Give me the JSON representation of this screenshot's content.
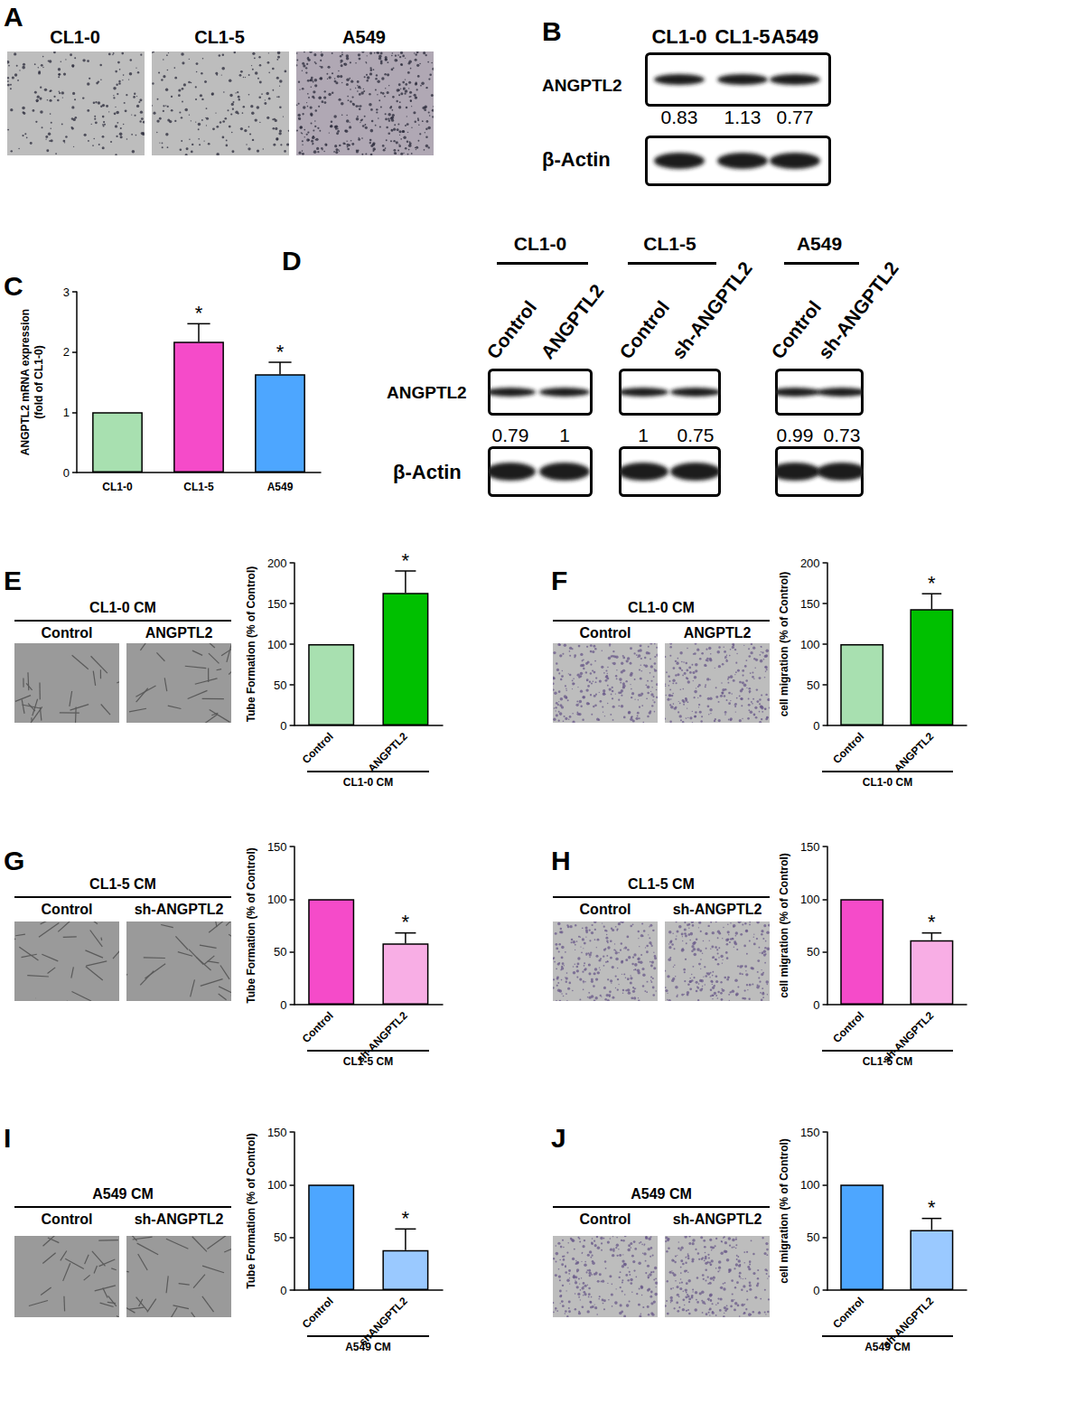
{
  "panels": {
    "A": {
      "letter": "A",
      "images": [
        "CL1-0",
        "CL1-5",
        "A549"
      ]
    },
    "B": {
      "letter": "B",
      "lanes": [
        "CL1-0",
        "CL1-5",
        "A549"
      ],
      "blots": [
        {
          "label": "ANGPTL2",
          "values": [
            0.83,
            1.13,
            0.77
          ]
        },
        {
          "label": "β-Actin"
        }
      ]
    },
    "C": {
      "letter": "C"
    },
    "D": {
      "letter": "D",
      "blots": [
        "ANGPTL2",
        "β-Actin"
      ],
      "groups": [
        {
          "name": "CL1-0",
          "lanes": [
            "Control",
            "ANGPTL2"
          ],
          "values": [
            0.79,
            1
          ]
        },
        {
          "name": "CL1-5",
          "lanes": [
            "Control",
            "sh-ANGPTL2"
          ],
          "values": [
            1,
            0.75
          ]
        },
        {
          "name": "A549",
          "lanes": [
            "Control",
            "sh-ANGPTL2"
          ],
          "values": [
            0.99,
            0.73
          ]
        }
      ]
    },
    "E": {
      "letter": "E",
      "image_title": "CL1-0 CM",
      "image_lanes": [
        "Control",
        "ANGPTL2"
      ]
    },
    "F": {
      "letter": "F",
      "image_title": "CL1-0 CM",
      "image_lanes": [
        "Control",
        "ANGPTL2"
      ]
    },
    "G": {
      "letter": "G",
      "image_title": "CL1-5 CM",
      "image_lanes": [
        "Control",
        "sh-ANGPTL2"
      ]
    },
    "H": {
      "letter": "H",
      "image_title": "CL1-5 CM",
      "image_lanes": [
        "Control",
        "sh-ANGPTL2"
      ]
    },
    "I": {
      "letter": "I",
      "image_title": "A549 CM",
      "image_lanes": [
        "Control",
        "sh-ANGPTL2"
      ]
    },
    "J": {
      "letter": "J",
      "image_title": "A549 CM",
      "image_lanes": [
        "Control",
        "sh-ANGPTL2"
      ]
    }
  },
  "chart_data": [
    {
      "type": "bar",
      "ylabel": "ANGPTL2 mRNA expression\n(fold of CL1-0)",
      "categories": [
        "CL1-0",
        "CL1-5",
        "A549"
      ],
      "values": [
        1,
        2.17,
        1.63
      ],
      "errors": [
        0,
        0.3,
        0.2
      ],
      "significance": [
        null,
        "*",
        "*"
      ],
      "colors": [
        "#a8e0b0",
        "#f54bc9",
        "#4da6ff"
      ],
      "ylim": [
        0,
        3
      ],
      "yticks": [
        0,
        1,
        2,
        3
      ]
    },
    {
      "type": "bar",
      "ylabel": "Tube Formation (% of Control)",
      "xlabel": "CL1-0 CM",
      "categories": [
        "Control",
        "ANGPTL2"
      ],
      "values": [
        100,
        163
      ],
      "errors": [
        0,
        27
      ],
      "significance": [
        null,
        "*"
      ],
      "colors": [
        "#a8e0b0",
        "#00c000"
      ],
      "ylim": [
        0,
        200
      ],
      "yticks": [
        0,
        50,
        100,
        150,
        200
      ]
    },
    {
      "type": "bar",
      "ylabel": "cell migration (% of Control)",
      "xlabel": "CL1-0 CM",
      "categories": [
        "Control",
        "ANGPTL2"
      ],
      "values": [
        100,
        143
      ],
      "errors": [
        0,
        19
      ],
      "significance": [
        null,
        "*"
      ],
      "colors": [
        "#a8e0b0",
        "#00c000"
      ],
      "ylim": [
        0,
        200
      ],
      "yticks": [
        0,
        50,
        100,
        150,
        200
      ]
    },
    {
      "type": "bar",
      "ylabel": "Tube Formation (% of Control)",
      "xlabel": "CL1-5 CM",
      "categories": [
        "Control",
        "sh-ANGPTL2"
      ],
      "values": [
        100,
        58
      ],
      "errors": [
        0,
        10
      ],
      "significance": [
        null,
        "*"
      ],
      "colors": [
        "#f54bc9",
        "#f8aee5"
      ],
      "ylim": [
        0,
        150
      ],
      "yticks": [
        0,
        50,
        100,
        150
      ]
    },
    {
      "type": "bar",
      "ylabel": "cell migration (% of Control)",
      "xlabel": "CL1-5 CM",
      "categories": [
        "Control",
        "sh-ANGPTL2"
      ],
      "values": [
        100,
        61
      ],
      "errors": [
        0,
        7
      ],
      "significance": [
        null,
        "*"
      ],
      "colors": [
        "#f54bc9",
        "#f8aee5"
      ],
      "ylim": [
        0,
        150
      ],
      "yticks": [
        0,
        50,
        100,
        150
      ]
    },
    {
      "type": "bar",
      "ylabel": "Tube Formation (% of Control)",
      "xlabel": "A549 CM",
      "categories": [
        "Control",
        "shANGPTL2"
      ],
      "values": [
        100,
        38
      ],
      "errors": [
        0,
        20
      ],
      "significance": [
        null,
        "*"
      ],
      "colors": [
        "#4da6ff",
        "#9ac9ff"
      ],
      "ylim": [
        0,
        150
      ],
      "yticks": [
        0,
        50,
        100,
        150
      ]
    },
    {
      "type": "bar",
      "ylabel": "cell migration (% of Control)",
      "xlabel": "A549 CM",
      "categories": [
        "Control",
        "sh-ANGPTL2"
      ],
      "values": [
        100,
        57
      ],
      "errors": [
        0,
        11
      ],
      "significance": [
        null,
        "*"
      ],
      "colors": [
        "#4da6ff",
        "#9ac9ff"
      ],
      "ylim": [
        0,
        150
      ],
      "yticks": [
        0,
        50,
        100,
        150
      ]
    }
  ]
}
